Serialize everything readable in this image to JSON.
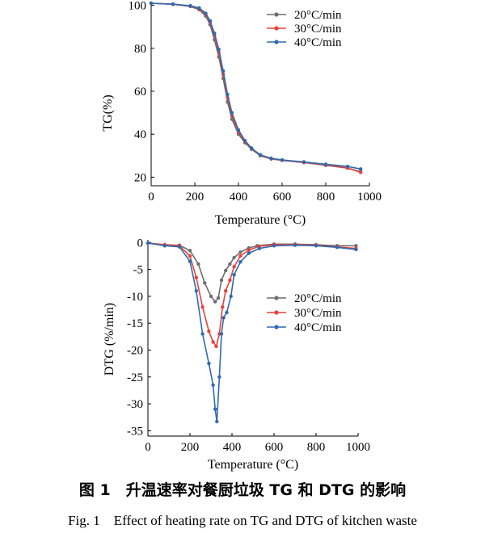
{
  "chart_data": [
    {
      "type": "line",
      "xlabel": "Temperature (°C)",
      "ylabel": "TG(%)",
      "xlim": [
        0,
        1000
      ],
      "ylim": [
        16,
        101
      ],
      "x_ticks": [
        "0",
        "200",
        "400",
        "600",
        "800",
        "1000"
      ],
      "y_ticks": [
        "20",
        "40",
        "60",
        "80",
        "100"
      ],
      "legend_position": "top-right",
      "grid": false,
      "series": [
        {
          "name": "20°C/min",
          "color": "#6e6e6e",
          "points": [
            [
              0,
              101
            ],
            [
              100,
              100.5
            ],
            [
              180,
              99.5
            ],
            [
              220,
              98
            ],
            [
              250,
              95
            ],
            [
              270,
              91
            ],
            [
              290,
              84
            ],
            [
              310,
              76
            ],
            [
              330,
              66
            ],
            [
              350,
              55
            ],
            [
              370,
              47
            ],
            [
              400,
              40
            ],
            [
              430,
              36
            ],
            [
              460,
              33
            ],
            [
              500,
              30
            ],
            [
              550,
              28.5
            ],
            [
              600,
              27.8
            ],
            [
              700,
              26.8
            ],
            [
              800,
              25.5
            ],
            [
              900,
              24.2
            ],
            [
              960,
              22.5
            ]
          ]
        },
        {
          "name": "30°C/min",
          "color": "#e8413c",
          "points": [
            [
              0,
              101
            ],
            [
              100,
              100.5
            ],
            [
              180,
              99.7
            ],
            [
              220,
              98.5
            ],
            [
              250,
              95.8
            ],
            [
              270,
              92.2
            ],
            [
              290,
              86
            ],
            [
              310,
              78
            ],
            [
              330,
              68
            ],
            [
              350,
              57
            ],
            [
              370,
              48.5
            ],
            [
              400,
              41
            ],
            [
              430,
              36.5
            ],
            [
              460,
              33.3
            ],
            [
              500,
              30.2
            ],
            [
              550,
              28.6
            ],
            [
              600,
              27.9
            ],
            [
              700,
              26.9
            ],
            [
              800,
              25.7
            ],
            [
              900,
              24.3
            ],
            [
              960,
              22.2
            ]
          ]
        },
        {
          "name": "40°C/min",
          "color": "#2f6ab0",
          "points": [
            [
              0,
              101
            ],
            [
              100,
              100.6
            ],
            [
              180,
              99.8
            ],
            [
              220,
              98.8
            ],
            [
              250,
              96.3
            ],
            [
              270,
              92.8
            ],
            [
              290,
              87
            ],
            [
              310,
              79.5
            ],
            [
              330,
              69.5
            ],
            [
              350,
              58.5
            ],
            [
              370,
              50
            ],
            [
              400,
              42
            ],
            [
              430,
              37
            ],
            [
              460,
              33.5
            ],
            [
              500,
              30.4
            ],
            [
              550,
              28.8
            ],
            [
              600,
              28
            ],
            [
              700,
              27.1
            ],
            [
              800,
              26
            ],
            [
              900,
              25
            ],
            [
              960,
              23.8
            ]
          ]
        }
      ]
    },
    {
      "type": "line",
      "xlabel": "Temperature (°C)",
      "ylabel": "DTG (%/min)",
      "xlim": [
        0,
        1000
      ],
      "ylim": [
        -36,
        0.5
      ],
      "x_ticks": [
        "0",
        "200",
        "400",
        "600",
        "800",
        "1000"
      ],
      "y_ticks": [
        "0",
        "-5",
        "-10",
        "-15",
        "-20",
        "-25",
        "-30",
        "-35"
      ],
      "legend_position": "center-right",
      "grid": false,
      "series": [
        {
          "name": "20°C/min",
          "color": "#6e6e6e",
          "points": [
            [
              0,
              -0.1
            ],
            [
              80,
              -0.4
            ],
            [
              150,
              -0.5
            ],
            [
              200,
              -1.5
            ],
            [
              240,
              -4
            ],
            [
              270,
              -7.5
            ],
            [
              300,
              -10
            ],
            [
              320,
              -11
            ],
            [
              335,
              -10.3
            ],
            [
              350,
              -7
            ],
            [
              370,
              -5.2
            ],
            [
              390,
              -4
            ],
            [
              410,
              -2.8
            ],
            [
              440,
              -1.8
            ],
            [
              480,
              -1
            ],
            [
              520,
              -0.6
            ],
            [
              600,
              -0.3
            ],
            [
              700,
              -0.3
            ],
            [
              800,
              -0.4
            ],
            [
              900,
              -0.6
            ],
            [
              990,
              -0.6
            ]
          ]
        },
        {
          "name": "30°C/min",
          "color": "#e8413c",
          "points": [
            [
              0,
              -0.1
            ],
            [
              80,
              -0.4
            ],
            [
              150,
              -0.6
            ],
            [
              200,
              -2.5
            ],
            [
              230,
              -6.5
            ],
            [
              260,
              -12
            ],
            [
              290,
              -16.5
            ],
            [
              310,
              -18.5
            ],
            [
              325,
              -19.3
            ],
            [
              340,
              -17
            ],
            [
              355,
              -12
            ],
            [
              370,
              -9
            ],
            [
              390,
              -7
            ],
            [
              410,
              -4.5
            ],
            [
              440,
              -2.5
            ],
            [
              480,
              -1.4
            ],
            [
              530,
              -0.7
            ],
            [
              600,
              -0.4
            ],
            [
              700,
              -0.4
            ],
            [
              800,
              -0.5
            ],
            [
              900,
              -0.8
            ],
            [
              990,
              -1.1
            ]
          ]
        },
        {
          "name": "40°C/min",
          "color": "#2f6ab0",
          "points": [
            [
              0,
              -0.1
            ],
            [
              80,
              -0.6
            ],
            [
              150,
              -0.8
            ],
            [
              200,
              -3.5
            ],
            [
              230,
              -9
            ],
            [
              260,
              -17
            ],
            [
              290,
              -22.5
            ],
            [
              310,
              -26.5
            ],
            [
              320,
              -31
            ],
            [
              328,
              -33.3
            ],
            [
              340,
              -25
            ],
            [
              350,
              -17
            ],
            [
              360,
              -14
            ],
            [
              375,
              -13
            ],
            [
              395,
              -10
            ],
            [
              410,
              -6
            ],
            [
              440,
              -3.6
            ],
            [
              480,
              -2
            ],
            [
              530,
              -1.1
            ],
            [
              600,
              -0.6
            ],
            [
              700,
              -0.5
            ],
            [
              800,
              -0.6
            ],
            [
              900,
              -0.9
            ],
            [
              990,
              -1.3
            ]
          ]
        }
      ]
    }
  ],
  "captions": {
    "cn": "图 1　升温速率对餐厨垃圾 TG 和 DTG 的影响",
    "en": "Fig. 1　Effect of heating rate on TG and DTG of kitchen waste"
  }
}
